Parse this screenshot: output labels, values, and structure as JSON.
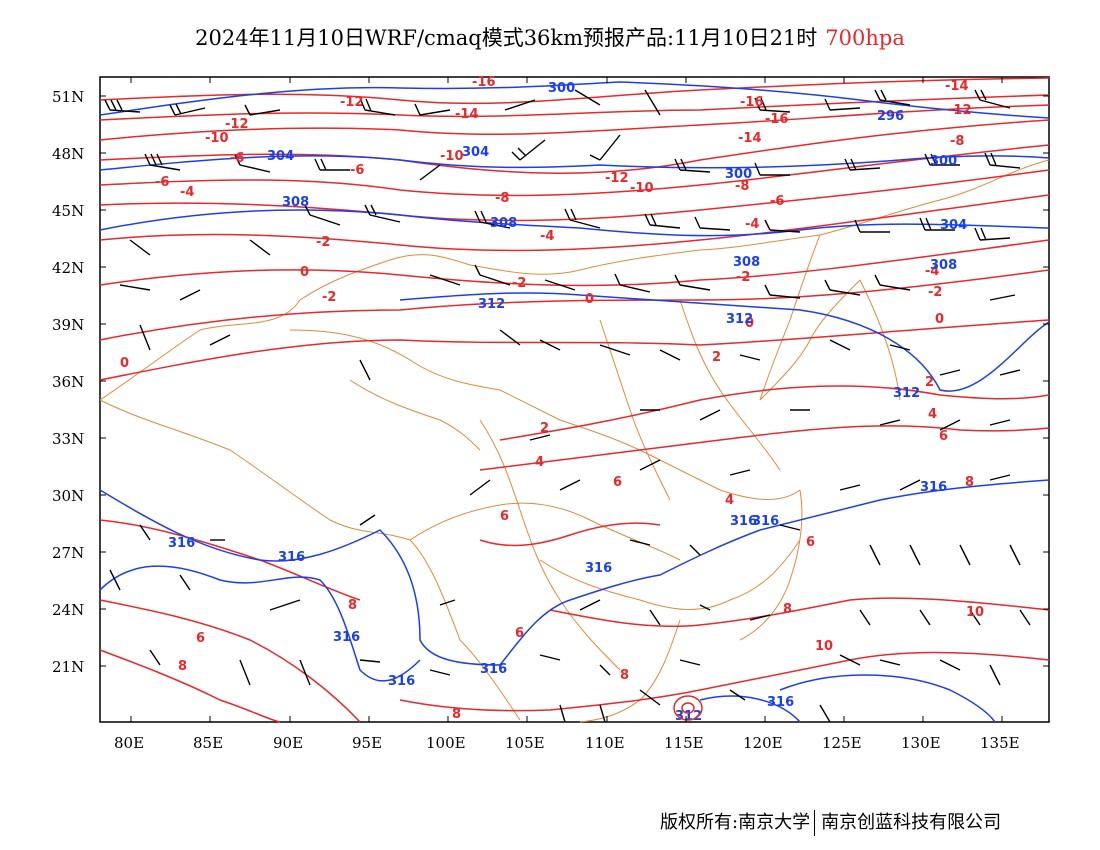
{
  "title": {
    "main": "2024年11月10日WRF/cmaq模式36km预报产品:11月10日21时",
    "level": "700hpa"
  },
  "footer": {
    "copyright": "版权所有:南京大学",
    "company": "南京创蓝科技有限公司"
  },
  "axes": {
    "lat_labels": [
      "51N",
      "48N",
      "45N",
      "42N",
      "39N",
      "36N",
      "33N",
      "30N",
      "27N",
      "24N",
      "21N"
    ],
    "lon_labels": [
      "80E",
      "85E",
      "90E",
      "95E",
      "100E",
      "105E",
      "110E",
      "115E",
      "120E",
      "125E",
      "130E",
      "135E"
    ],
    "lon_range": [
      78,
      138
    ],
    "lat_range": [
      18.5,
      52
    ]
  },
  "colors": {
    "temperature": "#e8282a",
    "geopotential": "#1a3ff0",
    "border": "#e08a3c",
    "wind": "#000000"
  },
  "temperature_labels": [
    "-16",
    "-14",
    "-12",
    "-10",
    "-8",
    "-6",
    "-4",
    "-2",
    "0",
    "2",
    "4",
    "6",
    "8",
    "10"
  ],
  "height_labels": [
    "296",
    "300",
    "304",
    "308",
    "312",
    "316"
  ],
  "legend_note": ""
}
